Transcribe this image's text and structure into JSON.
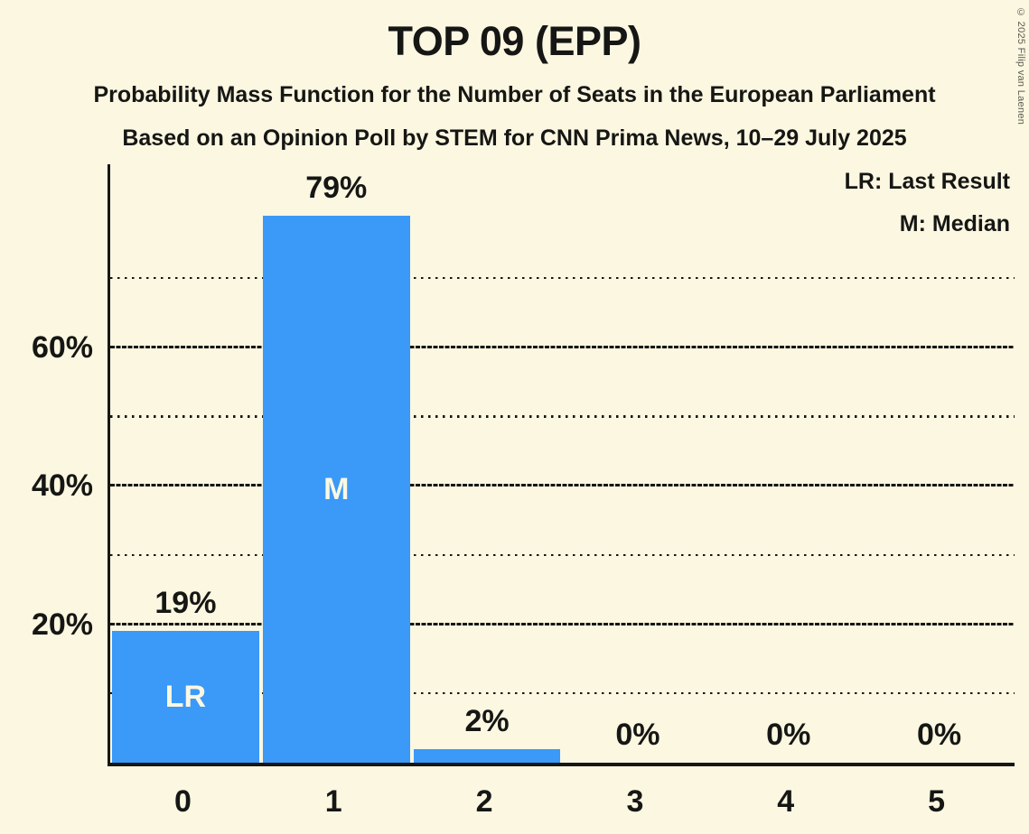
{
  "page": {
    "background_color": "#FBF7E1",
    "ink_color": "#161614"
  },
  "header": {
    "title": "TOP 09 (EPP)",
    "subtitle1": "Probability Mass Function for the Number of Seats in the European Parliament",
    "subtitle2": "Based on an Opinion Poll by STEM for CNN Prima News, 10–29 July 2025"
  },
  "copyright": "© 2025 Filip van Laenen",
  "chart_data": {
    "type": "bar",
    "title": "TOP 09 (EPP)",
    "categories": [
      "0",
      "1",
      "2",
      "3",
      "4",
      "5"
    ],
    "values": [
      19,
      79,
      2,
      0,
      0,
      0
    ],
    "value_labels": [
      "19%",
      "79%",
      "2%",
      "0%",
      "0%",
      "0%"
    ],
    "annotations": [
      {
        "category": "0",
        "label": "LR"
      },
      {
        "category": "1",
        "label": "M"
      }
    ],
    "legend": [
      "LR: Last Result",
      "M: Median"
    ],
    "y_axis": {
      "solid_ticks": [
        20,
        40,
        60
      ],
      "solid_tick_labels": [
        "20%",
        "40%",
        "60%"
      ],
      "dotted_gridlines": [
        10,
        30,
        50,
        70
      ],
      "ylim": [
        0,
        87
      ]
    },
    "grid": "horizontal",
    "legend_position": "top-right",
    "bar_color": "#3B99F8",
    "bar_label_color": "#FBF7E1"
  }
}
